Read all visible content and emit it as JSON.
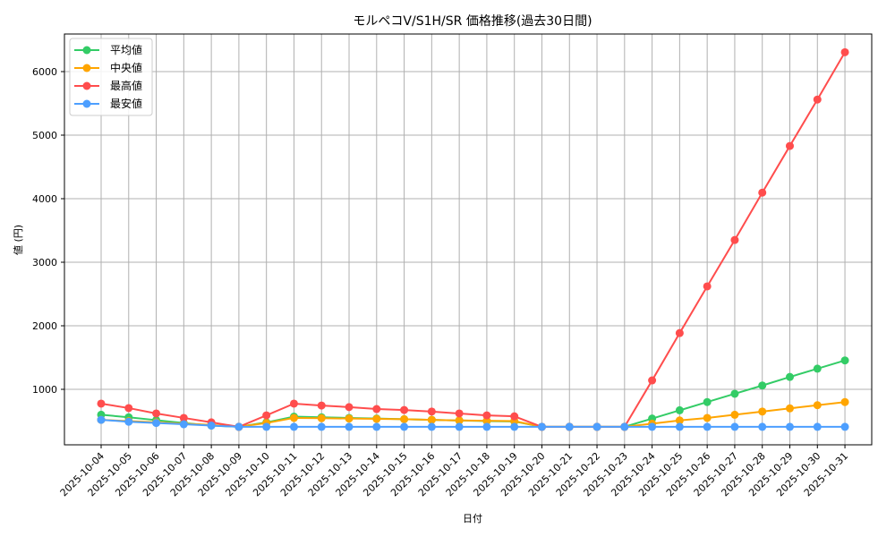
{
  "chart_data": {
    "type": "line",
    "title": "モルペコV/S1H/SR 価格推移(過去30日間)",
    "xlabel": "日付",
    "ylabel": "値 (円)",
    "ylim": [
      100,
      6600
    ],
    "yticks": [
      1000,
      2000,
      3000,
      4000,
      5000,
      6000
    ],
    "grid": true,
    "legend_position": "upper left",
    "categories": [
      "2025-10-04",
      "2025-10-05",
      "2025-10-06",
      "2025-10-07",
      "2025-10-08",
      "2025-10-09",
      "2025-10-10",
      "2025-10-11",
      "2025-10-12",
      "2025-10-13",
      "2025-10-14",
      "2025-10-15",
      "2025-10-16",
      "2025-10-17",
      "2025-10-18",
      "2025-10-19",
      "2025-10-20",
      "2025-10-21",
      "2025-10-22",
      "2025-10-23",
      "2025-10-24",
      "2025-10-25",
      "2025-10-26",
      "2025-10-27",
      "2025-10-28",
      "2025-10-29",
      "2025-10-30",
      "2025-10-31"
    ],
    "series": [
      {
        "name": "平均値",
        "color": "#33cc66",
        "values": [
          600,
          560,
          515,
          470,
          430,
          410,
          480,
          570,
          560,
          550,
          540,
          530,
          520,
          510,
          500,
          495,
          410,
          410,
          410,
          410,
          540,
          670,
          800,
          930,
          1060,
          1195,
          1325,
          1455
        ]
      },
      {
        "name": "中央値",
        "color": "#ffa500",
        "values": [
          520,
          500,
          480,
          460,
          440,
          410,
          470,
          550,
          545,
          540,
          535,
          530,
          520,
          510,
          505,
          500,
          410,
          410,
          410,
          410,
          460,
          510,
          550,
          600,
          650,
          700,
          750,
          800
        ]
      },
      {
        "name": "最高値",
        "color": "#ff4d4d",
        "values": [
          775,
          705,
          620,
          550,
          480,
          410,
          590,
          775,
          745,
          720,
          690,
          675,
          650,
          620,
          590,
          575,
          410,
          410,
          410,
          410,
          1140,
          1885,
          2620,
          3350,
          4095,
          4830,
          5560,
          6305
        ]
      },
      {
        "name": "最安値",
        "color": "#4d9fff",
        "values": [
          520,
          490,
          470,
          450,
          430,
          410,
          410,
          410,
          410,
          410,
          410,
          410,
          410,
          410,
          410,
          410,
          410,
          410,
          410,
          410,
          410,
          410,
          410,
          410,
          410,
          410,
          410,
          410
        ]
      }
    ]
  }
}
